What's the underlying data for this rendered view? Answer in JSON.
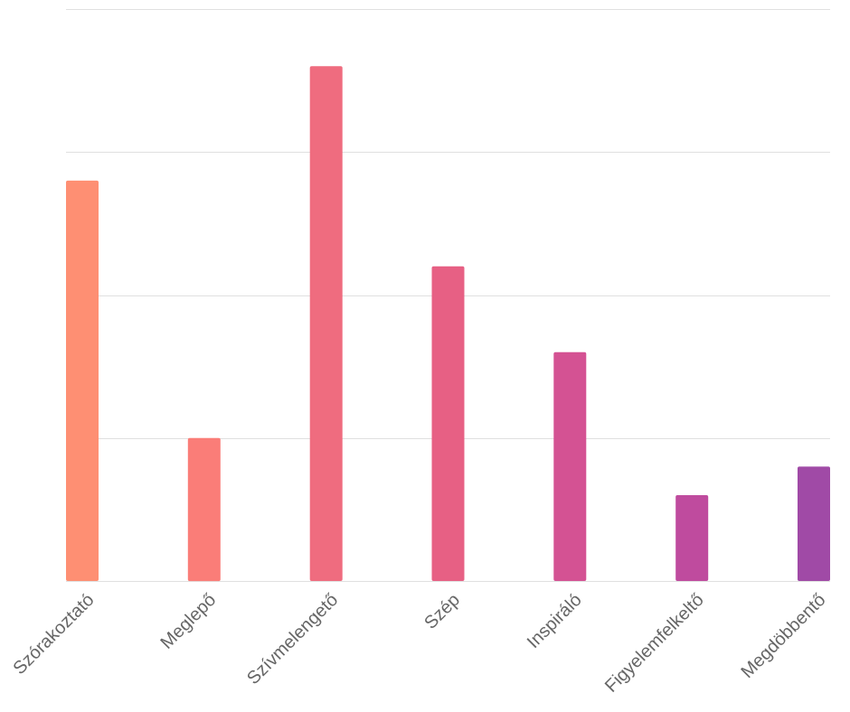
{
  "chart_data": {
    "type": "bar",
    "categories": [
      "Szórakoztató",
      "Meglepő",
      "Szívmelengető",
      "Szép",
      "Inspiráló",
      "Figyelemfelkeltő",
      "Megdöbbentő"
    ],
    "values": [
      14,
      5,
      18,
      11,
      8,
      3,
      4
    ],
    "colors": [
      "#fe8f73",
      "#fa7d78",
      "#ef6c7f",
      "#e76084",
      "#d45293",
      "#bf4b9e",
      "#a04aa6"
    ],
    "ylim": [
      0,
      20
    ],
    "yticks": [
      0,
      5,
      10,
      15,
      20
    ],
    "grid": true,
    "title": "",
    "xlabel": "",
    "ylabel": ""
  }
}
